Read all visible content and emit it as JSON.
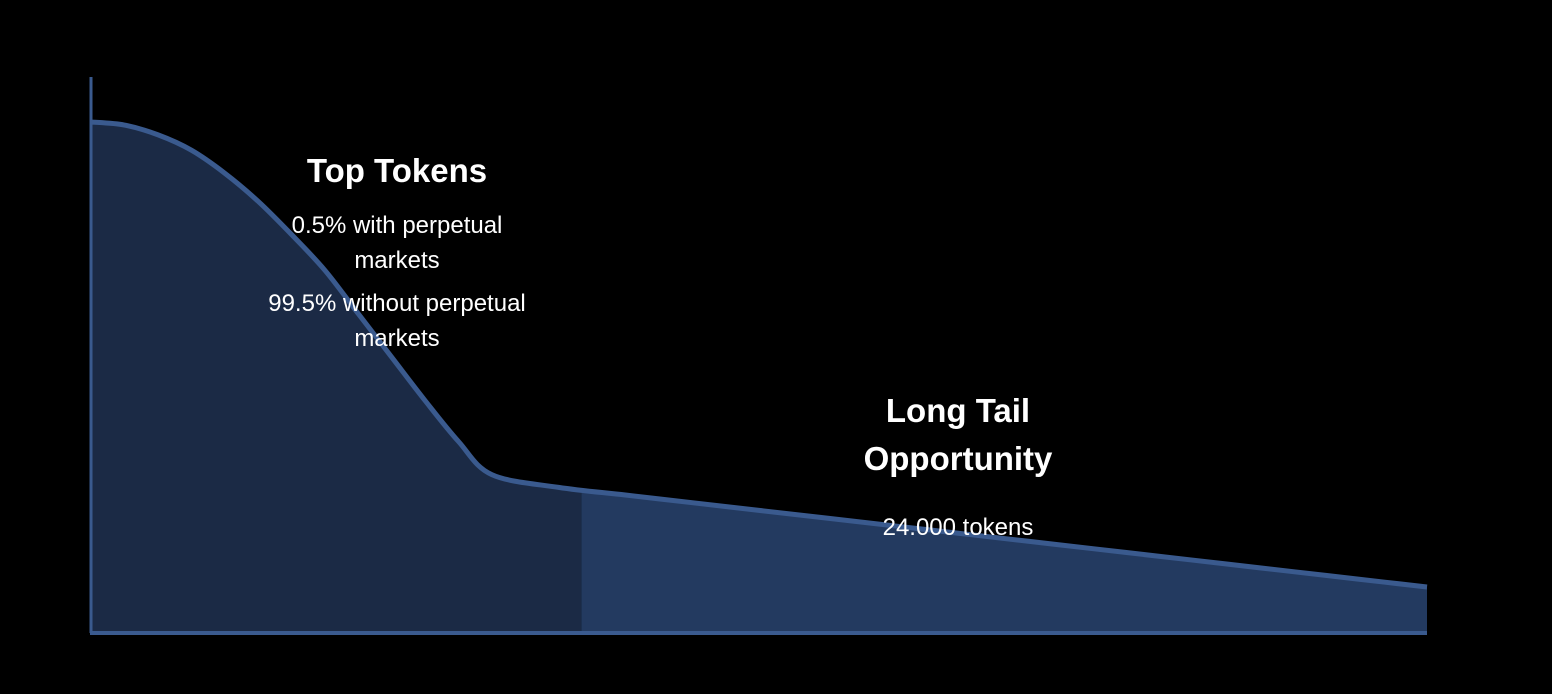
{
  "chart_data": {
    "type": "area",
    "title": "",
    "xlabel": "",
    "ylabel": "",
    "series": [
      {
        "values": [
          1.0,
          0.994,
          0.975,
          0.945,
          0.9,
          0.845,
          0.78,
          0.71,
          0.625,
          0.54,
          0.455,
          0.375,
          0.31,
          0.285,
          0.27,
          0.255,
          0.24,
          0.225,
          0.21,
          0.195,
          0.18,
          0.165,
          0.15,
          0.135,
          0.12,
          0.105,
          0.09
        ]
      }
    ],
    "x": [
      0,
      0.025,
      0.05,
      0.075,
      0.1,
      0.125,
      0.15,
      0.175,
      0.2,
      0.225,
      0.25,
      0.275,
      0.3,
      0.35,
      0.4,
      0.45,
      0.5,
      0.55,
      0.6,
      0.65,
      0.7,
      0.75,
      0.8,
      0.85,
      0.9,
      0.95,
      1.0
    ],
    "regions": [
      {
        "title": "Top Tokens",
        "lines": [
          "0.5% with perpetual",
          "markets",
          "99.5% without perpetual",
          "markets"
        ],
        "x_start": 0,
        "x_end": 0.367,
        "color": "#1b2a45"
      },
      {
        "title_lines": [
          "Long Tail",
          "Opportunity"
        ],
        "lines": [
          "24.000 tokens"
        ],
        "x_start": 0.367,
        "x_end": 1.0,
        "color": "#233a60"
      }
    ],
    "line_color": "#3a5a8e",
    "axis_color": "#3a5a8e",
    "background": "#000000"
  }
}
